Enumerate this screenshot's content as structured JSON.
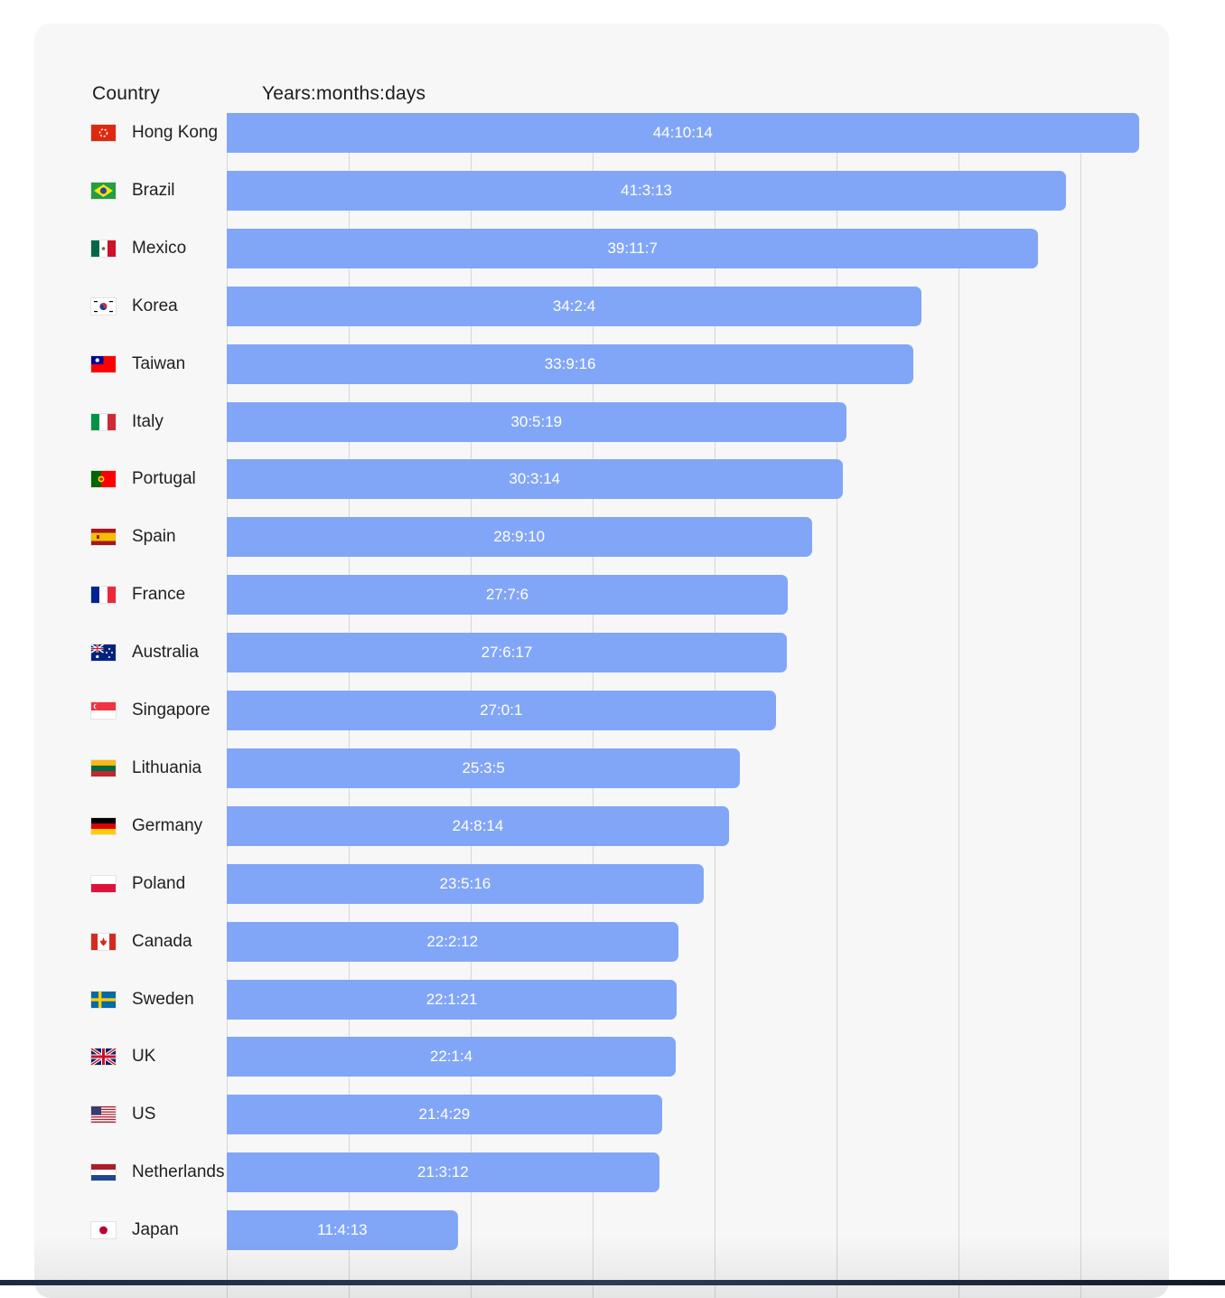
{
  "headers": {
    "country": "Country",
    "value": "Years:months:days"
  },
  "chart_data": {
    "type": "bar",
    "orientation": "horizontal",
    "xlabel": "Years:months:days",
    "ylabel": "Country",
    "grid": true,
    "categories": [
      "Hong Kong",
      "Brazil",
      "Mexico",
      "Korea",
      "Taiwan",
      "Italy",
      "Portugal",
      "Spain",
      "France",
      "Australia",
      "Singapore",
      "Lithuania",
      "Germany",
      "Poland",
      "Canada",
      "Sweden",
      "UK",
      "US",
      "Netherlands",
      "Japan"
    ],
    "labels": [
      "44:10:14",
      "41:3:13",
      "39:11:7",
      "34:2:4",
      "33:9:16",
      "30:5:19",
      "30:3:14",
      "28:9:10",
      "27:7:6",
      "27:6:17",
      "27:0:1",
      "25:3:5",
      "24:8:14",
      "23:5:16",
      "22:2:12",
      "22:1:21",
      "22:1:4",
      "21:4:29",
      "21:3:12",
      "11:4:13"
    ],
    "values": [
      44.87,
      41.29,
      39.93,
      34.18,
      33.79,
      30.47,
      30.29,
      28.78,
      27.6,
      27.55,
      27.0,
      25.26,
      24.71,
      23.46,
      22.2,
      22.14,
      22.09,
      21.41,
      21.28,
      11.37
    ],
    "xlim": [
      0,
      48
    ],
    "grid_step": 6
  },
  "flags": {
    "Hong Kong": "hong-kong-flag-icon",
    "Brazil": "brazil-flag-icon",
    "Mexico": "mexico-flag-icon",
    "Korea": "korea-flag-icon",
    "Taiwan": "taiwan-flag-icon",
    "Italy": "italy-flag-icon",
    "Portugal": "portugal-flag-icon",
    "Spain": "spain-flag-icon",
    "France": "france-flag-icon",
    "Australia": "australia-flag-icon",
    "Singapore": "singapore-flag-icon",
    "Lithuania": "lithuania-flag-icon",
    "Germany": "germany-flag-icon",
    "Poland": "poland-flag-icon",
    "Canada": "canada-flag-icon",
    "Sweden": "sweden-flag-icon",
    "UK": "uk-flag-icon",
    "US": "us-flag-icon",
    "Netherlands": "netherlands-flag-icon",
    "Japan": "japan-flag-icon"
  },
  "colors": {
    "bar": "#82a6f7",
    "grid": "#d6d6d6",
    "card": "#f7f7f7"
  }
}
